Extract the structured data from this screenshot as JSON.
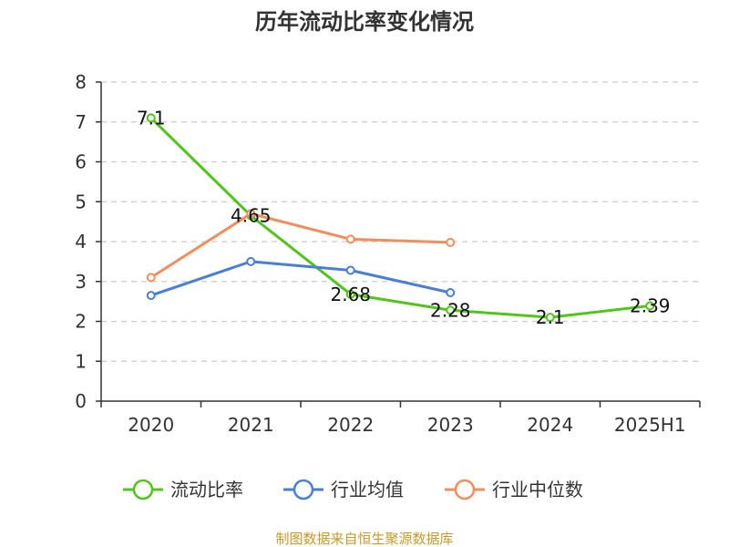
{
  "chart_data": {
    "type": "line",
    "title": "历年流动比率变化情况",
    "categories": [
      "2020",
      "2021",
      "2022",
      "2023",
      "2024",
      "2025H1"
    ],
    "ylim": [
      0,
      8
    ],
    "yticks": [
      "0",
      "1",
      "2",
      "3",
      "4",
      "5",
      "6",
      "7",
      "8"
    ],
    "grid": true,
    "legend_position": "bottom",
    "series": [
      {
        "name": "流动比率",
        "color": "#52c41a",
        "values": [
          7.1,
          4.65,
          2.68,
          2.28,
          2.1,
          2.39
        ],
        "labels": [
          "7.1",
          "4.65",
          "2.68",
          "2.28",
          "2.1",
          "2.39"
        ]
      },
      {
        "name": "行业均值",
        "color": "#4a7fd6",
        "values": [
          2.65,
          3.5,
          3.28,
          2.72,
          null,
          null
        ]
      },
      {
        "name": "行业中位数",
        "color": "#f28e5c",
        "values": [
          3.1,
          4.7,
          4.06,
          3.98,
          null,
          null
        ]
      }
    ],
    "source": "制图数据来自恒生聚源数据库"
  }
}
